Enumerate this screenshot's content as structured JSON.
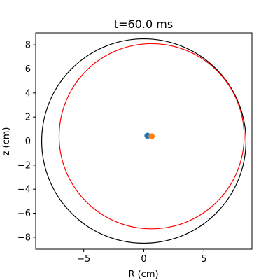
{
  "chart_data": {
    "type": "scatter",
    "title": "t=60.0 ms",
    "xlabel": "R (cm)",
    "ylabel": "z (cm)",
    "xlim": [
      -9.0,
      9.0
    ],
    "ylim": [
      -9.0,
      9.0
    ],
    "xticks": [
      -5,
      0,
      5
    ],
    "yticks": [
      -8,
      -6,
      -4,
      -2,
      0,
      2,
      4,
      6,
      8
    ],
    "xtick_labels": [
      "−5",
      "0",
      "5"
    ],
    "ytick_labels": [
      "−8",
      "−6",
      "−4",
      "−2",
      "0",
      "2",
      "4",
      "6",
      "8"
    ],
    "grid": false,
    "curves": [
      {
        "shape": "circle",
        "center": [
          0.0,
          0.0
        ],
        "radius": 8.5,
        "color": "#000000"
      },
      {
        "shape": "circle",
        "center": [
          0.65,
          0.4
        ],
        "radius": 7.7,
        "color": "#ff0000"
      }
    ],
    "points": [
      {
        "x": 0.3,
        "y": 0.45,
        "color": "#1f77b4"
      },
      {
        "x": 0.65,
        "y": 0.4,
        "color": "#ff7f0e"
      }
    ]
  }
}
